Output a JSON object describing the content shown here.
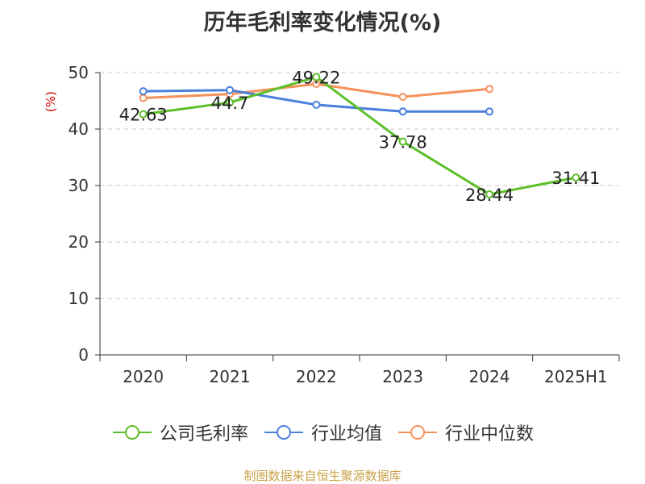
{
  "title": "历年毛利率变化情况(%)",
  "source": "制图数据来自恒生聚源数据库",
  "chart_data": {
    "type": "line",
    "title": "历年毛利率变化情况(%)",
    "ylabel": "(%)",
    "xlabel": "",
    "categories": [
      "2020",
      "2021",
      "2022",
      "2023",
      "2024",
      "2025H1"
    ],
    "ylim": [
      0,
      50
    ],
    "yticks": [
      0,
      10,
      20,
      30,
      40,
      50
    ],
    "grid": true,
    "legend_position": "bottom",
    "series": [
      {
        "name": "公司毛利率",
        "color": "#5cbf2a",
        "values": [
          42.63,
          44.7,
          49.22,
          37.78,
          28.44,
          31.41
        ],
        "labels": [
          "42.63",
          "44.7",
          "49.22",
          "37.78",
          "28.44",
          "31.41"
        ]
      },
      {
        "name": "行业均值",
        "color": "#4a7fdc",
        "values": [
          46.7,
          46.9,
          44.3,
          43.1,
          43.1,
          null
        ]
      },
      {
        "name": "行业中位数",
        "color": "#f5915a",
        "values": [
          45.5,
          46.2,
          48.0,
          45.7,
          47.1,
          null
        ]
      }
    ]
  }
}
